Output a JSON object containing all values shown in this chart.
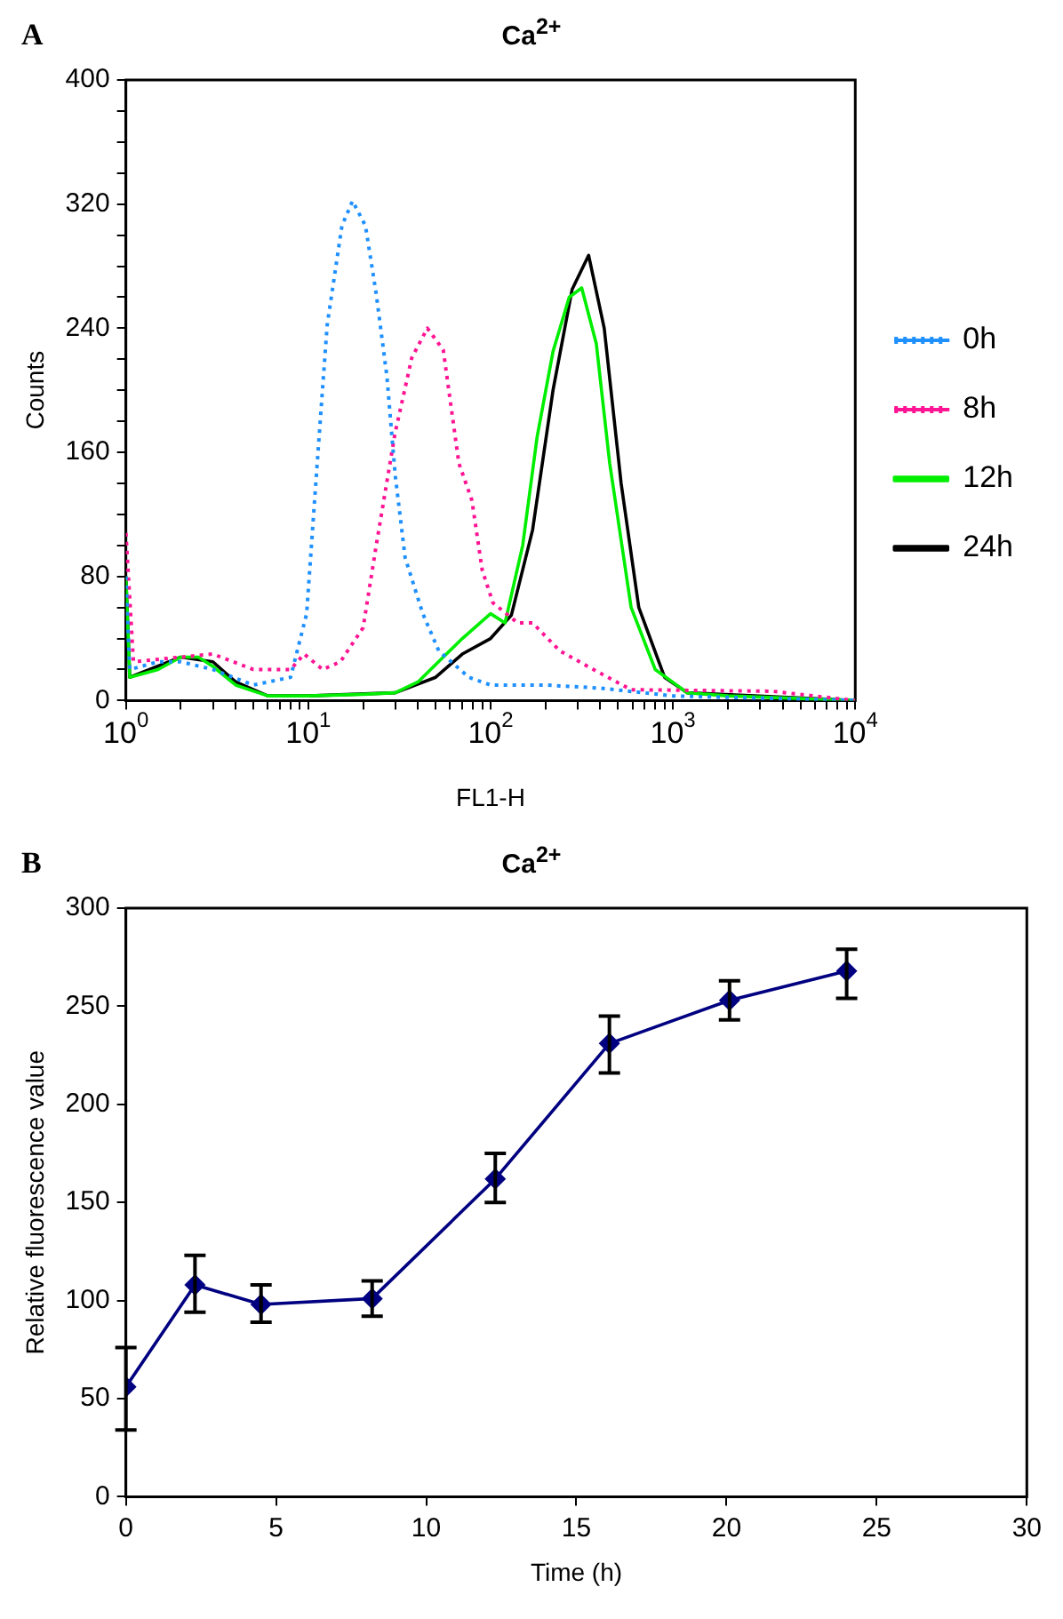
{
  "chart_data": [
    {
      "type": "line",
      "title": "Ca$^{2+}$",
      "annotations": [
        "A"
      ],
      "xlabel": "FL1-H",
      "ylabel": "Counts",
      "log": "x",
      "legend": "right",
      "marker": "none",
      "grid": false,
      "xlim": [
        1,
        10000
      ],
      "xticks": [
        {
          "value": 1,
          "label": "10$^{0}$"
        },
        {
          "value": 2,
          "label": null
        },
        {
          "value": 3,
          "label": null
        },
        {
          "value": 4,
          "label": null
        },
        {
          "value": 5,
          "label": null
        },
        {
          "value": 6,
          "label": null
        },
        {
          "value": 7,
          "label": null
        },
        {
          "value": 8,
          "label": null
        },
        {
          "value": 9,
          "label": null
        },
        {
          "value": 10,
          "label": "10$^{1}$"
        },
        {
          "value": 20,
          "label": null
        },
        {
          "value": 30,
          "label": null
        },
        {
          "value": 40,
          "label": null
        },
        {
          "value": 50,
          "label": null
        },
        {
          "value": 60,
          "label": null
        },
        {
          "value": 70,
          "label": null
        },
        {
          "value": 80,
          "label": null
        },
        {
          "value": 90,
          "label": null
        },
        {
          "value": 100,
          "label": "10$^{2}$"
        },
        {
          "value": 200,
          "label": null
        },
        {
          "value": 300,
          "label": null
        },
        {
          "value": 400,
          "label": null
        },
        {
          "value": 500,
          "label": null
        },
        {
          "value": 600,
          "label": null
        },
        {
          "value": 700,
          "label": null
        },
        {
          "value": 800,
          "label": null
        },
        {
          "value": 900,
          "label": null
        },
        {
          "value": 1000,
          "label": "10$^{3}$"
        },
        {
          "value": 2000,
          "label": null
        },
        {
          "value": 3000,
          "label": null
        },
        {
          "value": 4000,
          "label": null
        },
        {
          "value": 5000,
          "label": null
        },
        {
          "value": 6000,
          "label": null
        },
        {
          "value": 7000,
          "label": null
        },
        {
          "value": 8000,
          "label": null
        },
        {
          "value": 9000,
          "label": null
        },
        {
          "value": 10000,
          "label": "10$^{4}$"
        }
      ],
      "ylim": [
        0,
        400
      ],
      "yticks": [
        0,
        {
          "value": 20,
          "label": null
        },
        {
          "value": 40,
          "label": null
        },
        {
          "value": 60,
          "label": null
        },
        80,
        {
          "value": 100,
          "label": null
        },
        {
          "value": 120,
          "label": null
        },
        {
          "value": 140,
          "label": null
        },
        160,
        {
          "value": 180,
          "label": null
        },
        {
          "value": 200,
          "label": null
        },
        {
          "value": 220,
          "label": null
        },
        240,
        {
          "value": 260,
          "label": null
        },
        {
          "value": 280,
          "label": null
        },
        {
          "value": 300,
          "label": null
        },
        320,
        {
          "value": 340,
          "label": null
        },
        {
          "value": 360,
          "label": null
        },
        {
          "value": 380,
          "label": null
        },
        400
      ],
      "series": [
        {
          "name": "0h",
          "color": "#1e90ff",
          "line_style": "dotted",
          "x": [
            1,
            1.05,
            1.5,
            2,
            3,
            5,
            8,
            9.8,
            11.2,
            12.7,
            15.3,
            17.5,
            20.6,
            23.6,
            27,
            30,
            34,
            42.5,
            52,
            76,
            100,
            200,
            400,
            1000,
            10000
          ],
          "values": [
            80,
            20,
            25,
            25,
            20,
            10,
            15,
            56,
            153,
            242,
            306,
            322,
            306,
            262,
            209,
            145,
            92,
            56,
            32,
            15,
            10,
            10,
            8,
            3,
            0
          ]
        },
        {
          "name": "8h",
          "color": "#ff1493",
          "line_style": "dotted",
          "x": [
            1,
            1.1,
            2,
            3,
            5,
            8,
            9.5,
            12,
            15,
            20,
            23.6,
            30,
            37,
            45,
            55,
            67,
            79,
            90,
            103,
            141,
            170,
            240,
            380,
            590,
            3500,
            10000
          ],
          "values": [
            108,
            25,
            28,
            30,
            20,
            20,
            30,
            20,
            25,
            47,
            100,
            173,
            221,
            240,
            226,
            153,
            129,
            84,
            63,
            50,
            50,
            32,
            19,
            7,
            6,
            0
          ]
        },
        {
          "name": "12h",
          "color": "#00ee00",
          "line_style": "solid",
          "x": [
            1,
            1.05,
            1.5,
            2,
            2.5,
            3,
            4,
            6,
            10,
            20,
            30,
            40,
            55,
            70,
            100,
            120,
            150,
            180,
            220,
            270,
            316,
            380,
            450,
            590,
            800,
            1200,
            2000,
            10000
          ],
          "values": [
            80,
            15,
            20,
            28,
            28,
            22,
            10,
            3,
            3,
            4,
            5,
            12,
            28,
            40,
            56,
            50,
            100,
            170,
            225,
            260,
            266,
            230,
            153,
            60,
            20,
            5,
            3,
            0
          ]
        },
        {
          "name": "24h",
          "color": "#000000",
          "line_style": "solid",
          "x": [
            1,
            1.05,
            2,
            3,
            4,
            6,
            10,
            30,
            50,
            70,
            100,
            130,
            170,
            220,
            280,
            345,
            420,
            520,
            650,
            900,
            1200,
            10000
          ],
          "values": [
            80,
            15,
            28,
            25,
            12,
            3,
            3,
            5,
            15,
            30,
            40,
            55,
            110,
            200,
            265,
            287,
            240,
            140,
            60,
            15,
            5,
            0
          ]
        }
      ]
    },
    {
      "type": "line",
      "title": "Ca$^{2+}$",
      "annotations": [
        "B"
      ],
      "xlabel": "Time (h)",
      "ylabel": "Relative fluorescence value",
      "marker": "diamond",
      "line_style": "solid",
      "grid": false,
      "legend": false,
      "xlim": [
        0,
        30
      ],
      "xticks": [
        0,
        5,
        10,
        15,
        20,
        25,
        30
      ],
      "ylim": [
        0,
        300
      ],
      "yticks": [
        0,
        50,
        100,
        150,
        200,
        250,
        300
      ],
      "x": [
        0,
        2.3,
        4.5,
        8.2,
        12.3,
        16.1,
        20.1,
        24
      ],
      "series": [
        {
          "color": "#000080",
          "values": [
            56,
            108,
            98,
            101,
            162,
            231,
            253,
            268
          ],
          "errors": [
            [
              34,
              76
            ],
            [
              94,
              123
            ],
            [
              89,
              108
            ],
            [
              92,
              110
            ],
            [
              150,
              175
            ],
            [
              216,
              245
            ],
            [
              243,
              263
            ],
            [
              254,
              279
            ]
          ]
        }
      ]
    }
  ]
}
